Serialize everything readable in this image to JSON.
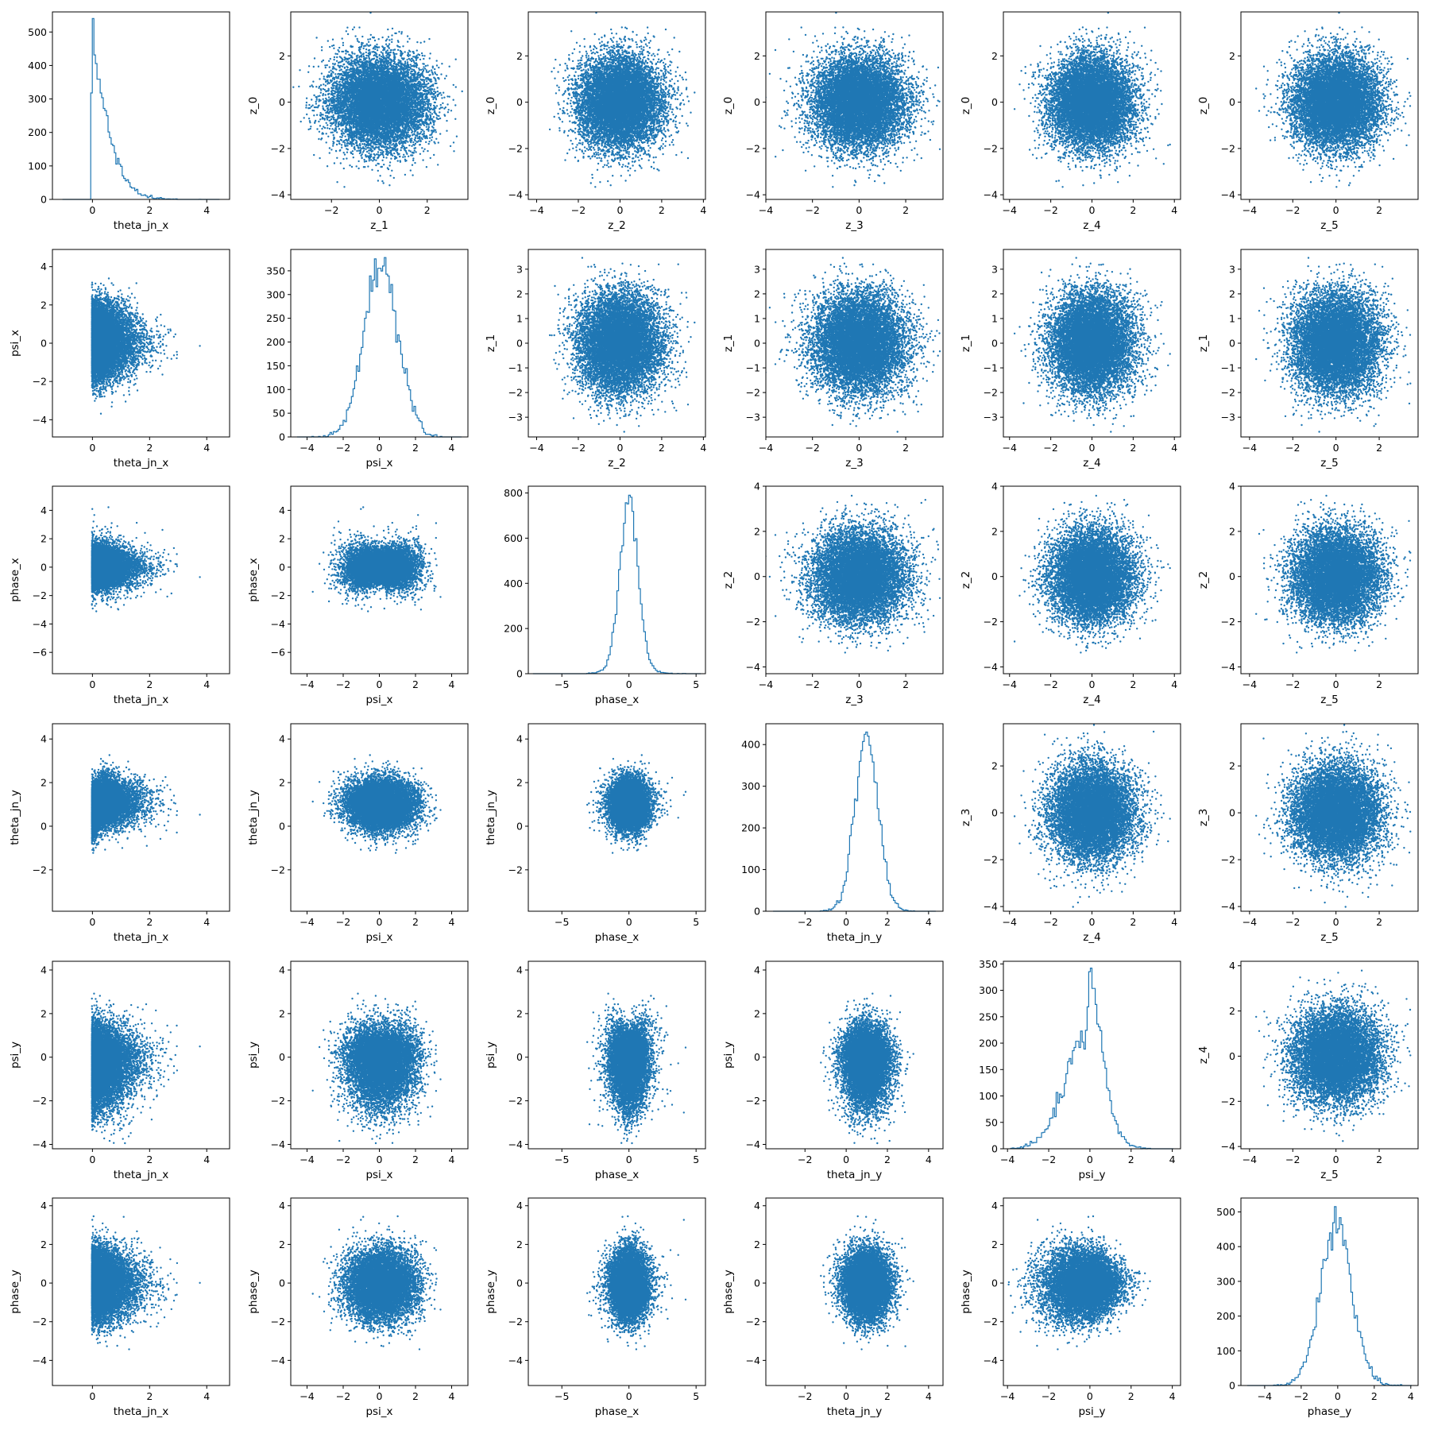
{
  "figure": {
    "type": "corner_pairplot",
    "color": "#1f77b4",
    "n_points_per_scatter": 10000,
    "variables": [
      {
        "key": "theta_jn_x",
        "label": "theta_jn_x",
        "lim": [
          -1.4,
          4.8
        ],
        "ticks": [
          0,
          2,
          4
        ],
        "mean": 0.5,
        "sd": 0.55
      },
      {
        "key": "psi_x",
        "label": "psi_x",
        "lim": [
          -4.9,
          4.9
        ],
        "ticks": [
          -4,
          -2,
          0,
          2,
          4
        ],
        "mean": 0.0,
        "sd": 1.0
      },
      {
        "key": "phase_x",
        "label": "phase_x",
        "lim": [
          -7.5,
          5.7
        ],
        "ticks": [
          -5,
          0,
          5
        ],
        "mean": 0.0,
        "sd": 1.0
      },
      {
        "key": "theta_jn_y",
        "label": "theta_jn_y",
        "lim": [
          -3.9,
          4.7
        ],
        "ticks": [
          -2,
          0,
          2,
          4
        ],
        "mean": 0.85,
        "sd": 0.8
      },
      {
        "key": "psi_y",
        "label": "psi_y",
        "lim": [
          -4.2,
          4.4
        ],
        "ticks": [
          -4,
          -2,
          0,
          2,
          4
        ],
        "mean": -0.2,
        "sd": 1.0
      },
      {
        "key": "phase_y",
        "label": "phase_y",
        "lim": [
          -5.3,
          4.4
        ],
        "ticks": [
          -4,
          -2,
          0,
          2,
          4
        ],
        "mean": -0.1,
        "sd": 1.0
      }
    ],
    "latents": [
      {
        "key": "z_0",
        "label": "z_0",
        "lim": [
          -4.2,
          3.9
        ],
        "ticks": [
          -4,
          -2,
          0,
          2
        ]
      },
      {
        "key": "z_1",
        "label": "z_1",
        "lim": [
          -3.8,
          3.8
        ],
        "ticks": [
          -3,
          -2,
          -1,
          0,
          1,
          2,
          3
        ]
      },
      {
        "key": "z_2",
        "label": "z_2",
        "lim": [
          -4.3,
          4.0
        ],
        "ticks": [
          -4,
          -2,
          0,
          2,
          4
        ]
      },
      {
        "key": "z_3",
        "label": "z_3",
        "lim": [
          -4.2,
          3.8
        ],
        "ticks": [
          -4,
          -2,
          0,
          2
        ]
      },
      {
        "key": "z_4",
        "label": "z_4",
        "lim": [
          -4.1,
          4.2
        ],
        "ticks": [
          -4,
          -2,
          0,
          2,
          4
        ]
      },
      {
        "key": "z_5",
        "label": "z_5",
        "lim": [
          -4.0,
          3.8
        ],
        "ticks": [
          -2,
          0,
          2
        ]
      }
    ],
    "upper_x_ticks": [
      [
        -2,
        0,
        2
      ],
      [
        -4,
        -2,
        0,
        2,
        4
      ],
      [
        -4,
        -2,
        0,
        2
      ],
      [
        -4,
        -2,
        0,
        2,
        4
      ],
      [
        -4,
        -2,
        0,
        2
      ]
    ],
    "upper_x_lims": [
      [
        -3.7,
        3.7
      ],
      [
        -4.4,
        4.1
      ],
      [
        -4.0,
        3.6
      ],
      [
        -4.3,
        4.3
      ],
      [
        -4.4,
        3.8
      ]
    ],
    "hist_ylim": [
      [
        0,
        560
      ],
      [
        0,
        395
      ],
      [
        0,
        830
      ],
      [
        0,
        450
      ],
      [
        0,
        355
      ],
      [
        0,
        540
      ]
    ],
    "hist_yticks": [
      [
        0,
        100,
        200,
        300,
        400,
        500
      ],
      [
        0,
        50,
        100,
        150,
        200,
        250,
        300,
        350
      ],
      [
        0,
        200,
        400,
        600,
        800
      ],
      [
        0,
        100,
        200,
        300,
        400
      ],
      [
        0,
        50,
        100,
        150,
        200,
        250,
        300,
        350
      ],
      [
        0,
        100,
        200,
        300,
        400,
        500
      ]
    ],
    "hist_peak": [
      540,
      378,
      790,
      430,
      342,
      515
    ],
    "upper_y_ticks_override": {
      "0": [
        -4,
        -2,
        0,
        2
      ],
      "1": [
        -3,
        -2,
        -1,
        0,
        1,
        2,
        3
      ],
      "2": [
        -4,
        -2,
        0,
        2,
        4
      ],
      "3": [
        -4,
        -2,
        0,
        2
      ],
      "4": [
        -4,
        -2,
        0,
        2,
        4
      ]
    },
    "lower_y_ticks": {
      "1": [
        -4,
        -2,
        0,
        2,
        4
      ],
      "2": [
        -6,
        -4,
        -2,
        0,
        2,
        4
      ],
      "3": [
        -2,
        0,
        2,
        4
      ],
      "4": [
        -4,
        -2,
        0,
        2,
        4
      ],
      "5": [
        -4,
        -2,
        0,
        2,
        4
      ]
    },
    "lower_y_lims": {
      "1": [
        -4.9,
        4.9
      ],
      "2": [
        -7.5,
        5.7
      ],
      "3": [
        -3.9,
        4.7
      ],
      "4": [
        -4.2,
        4.4
      ],
      "5": [
        -5.3,
        4.4
      ]
    }
  }
}
